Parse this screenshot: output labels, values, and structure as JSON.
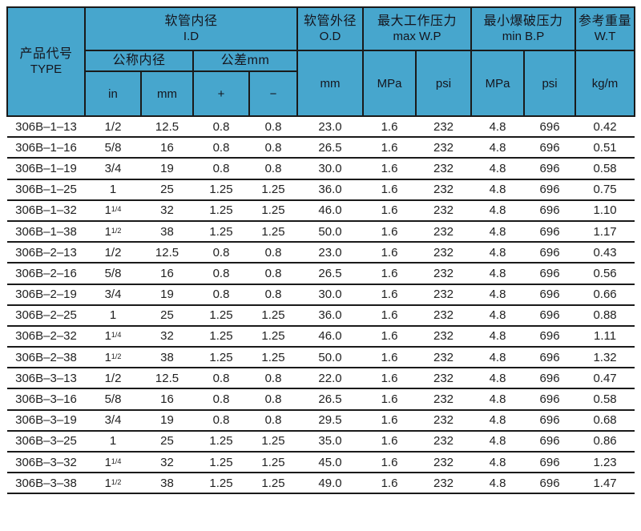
{
  "colors": {
    "header_bg": "#47a6cd",
    "border": "#1a1a1a",
    "text": "#222222"
  },
  "table": {
    "header": {
      "product_code_zh": "产品代号",
      "product_code_en": "TYPE",
      "inner_diameter_zh": "软管内径",
      "inner_diameter_en": "I.D",
      "nominal_id_zh": "公称内径",
      "tolerance_zh": "公差mm",
      "outer_diameter_zh": "软管外径",
      "outer_diameter_en": "O.D",
      "max_working_pressure_zh": "最大工作压力",
      "max_working_pressure_en": "max W.P",
      "min_burst_pressure_zh": "最小爆破压力",
      "min_burst_pressure_en": "min B.P",
      "reference_weight_zh": "参考重量",
      "reference_weight_en": "W.T",
      "unit_in": "in",
      "unit_mm": "mm",
      "unit_plus": "+",
      "unit_minus": "−",
      "unit_od_mm": "mm",
      "unit_wp_mpa": "MPa",
      "unit_wp_psi": "psi",
      "unit_bp_mpa": "MPa",
      "unit_bp_psi": "psi",
      "unit_kgm": "kg/m"
    },
    "rows": [
      {
        "type": "306B–1–13",
        "in_base": "1/2",
        "in_frac": "",
        "id_mm": "12.5",
        "tol_plus": "0.8",
        "tol_minus": "0.8",
        "od": "23.0",
        "wp_mpa": "1.6",
        "wp_psi": "232",
        "bp_mpa": "4.8",
        "bp_psi": "696",
        "wt": "0.42"
      },
      {
        "type": "306B–1–16",
        "in_base": "5/8",
        "in_frac": "",
        "id_mm": "16",
        "tol_plus": "0.8",
        "tol_minus": "0.8",
        "od": "26.5",
        "wp_mpa": "1.6",
        "wp_psi": "232",
        "bp_mpa": "4.8",
        "bp_psi": "696",
        "wt": "0.51"
      },
      {
        "type": "306B–1–19",
        "in_base": "3/4",
        "in_frac": "",
        "id_mm": "19",
        "tol_plus": "0.8",
        "tol_minus": "0.8",
        "od": "30.0",
        "wp_mpa": "1.6",
        "wp_psi": "232",
        "bp_mpa": "4.8",
        "bp_psi": "696",
        "wt": "0.58"
      },
      {
        "type": "306B–1–25",
        "in_base": "1",
        "in_frac": "",
        "id_mm": "25",
        "tol_plus": "1.25",
        "tol_minus": "1.25",
        "od": "36.0",
        "wp_mpa": "1.6",
        "wp_psi": "232",
        "bp_mpa": "4.8",
        "bp_psi": "696",
        "wt": "0.75"
      },
      {
        "type": "306B–1–32",
        "in_base": "1",
        "in_frac": "1/4",
        "id_mm": "32",
        "tol_plus": "1.25",
        "tol_minus": "1.25",
        "od": "46.0",
        "wp_mpa": "1.6",
        "wp_psi": "232",
        "bp_mpa": "4.8",
        "bp_psi": "696",
        "wt": "1.10"
      },
      {
        "type": "306B–1–38",
        "in_base": "1",
        "in_frac": "1/2",
        "id_mm": "38",
        "tol_plus": "1.25",
        "tol_minus": "1.25",
        "od": "50.0",
        "wp_mpa": "1.6",
        "wp_psi": "232",
        "bp_mpa": "4.8",
        "bp_psi": "696",
        "wt": "1.17"
      },
      {
        "type": "306B–2–13",
        "in_base": "1/2",
        "in_frac": "",
        "id_mm": "12.5",
        "tol_plus": "0.8",
        "tol_minus": "0.8",
        "od": "23.0",
        "wp_mpa": "1.6",
        "wp_psi": "232",
        "bp_mpa": "4.8",
        "bp_psi": "696",
        "wt": "0.43"
      },
      {
        "type": "306B–2–16",
        "in_base": "5/8",
        "in_frac": "",
        "id_mm": "16",
        "tol_plus": "0.8",
        "tol_minus": "0.8",
        "od": "26.5",
        "wp_mpa": "1.6",
        "wp_psi": "232",
        "bp_mpa": "4.8",
        "bp_psi": "696",
        "wt": "0.56"
      },
      {
        "type": "306B–2–19",
        "in_base": "3/4",
        "in_frac": "",
        "id_mm": "19",
        "tol_plus": "0.8",
        "tol_minus": "0.8",
        "od": "30.0",
        "wp_mpa": "1.6",
        "wp_psi": "232",
        "bp_mpa": "4.8",
        "bp_psi": "696",
        "wt": "0.66"
      },
      {
        "type": "306B–2–25",
        "in_base": "1",
        "in_frac": "",
        "id_mm": "25",
        "tol_plus": "1.25",
        "tol_minus": "1.25",
        "od": "36.0",
        "wp_mpa": "1.6",
        "wp_psi": "232",
        "bp_mpa": "4.8",
        "bp_psi": "696",
        "wt": "0.88"
      },
      {
        "type": "306B–2–32",
        "in_base": "1",
        "in_frac": "1/4",
        "id_mm": "32",
        "tol_plus": "1.25",
        "tol_minus": "1.25",
        "od": "46.0",
        "wp_mpa": "1.6",
        "wp_psi": "232",
        "bp_mpa": "4.8",
        "bp_psi": "696",
        "wt": "1.11"
      },
      {
        "type": "306B–2–38",
        "in_base": "1",
        "in_frac": "1/2",
        "id_mm": "38",
        "tol_plus": "1.25",
        "tol_minus": "1.25",
        "od": "50.0",
        "wp_mpa": "1.6",
        "wp_psi": "232",
        "bp_mpa": "4.8",
        "bp_psi": "696",
        "wt": "1.32"
      },
      {
        "type": "306B–3–13",
        "in_base": "1/2",
        "in_frac": "",
        "id_mm": "12.5",
        "tol_plus": "0.8",
        "tol_minus": "0.8",
        "od": "22.0",
        "wp_mpa": "1.6",
        "wp_psi": "232",
        "bp_mpa": "4.8",
        "bp_psi": "696",
        "wt": "0.47"
      },
      {
        "type": "306B–3–16",
        "in_base": "5/8",
        "in_frac": "",
        "id_mm": "16",
        "tol_plus": "0.8",
        "tol_minus": "0.8",
        "od": "26.5",
        "wp_mpa": "1.6",
        "wp_psi": "232",
        "bp_mpa": "4.8",
        "bp_psi": "696",
        "wt": "0.58"
      },
      {
        "type": "306B–3–19",
        "in_base": "3/4",
        "in_frac": "",
        "id_mm": "19",
        "tol_plus": "0.8",
        "tol_minus": "0.8",
        "od": "29.5",
        "wp_mpa": "1.6",
        "wp_psi": "232",
        "bp_mpa": "4.8",
        "bp_psi": "696",
        "wt": "0.68"
      },
      {
        "type": "306B–3–25",
        "in_base": "1",
        "in_frac": "",
        "id_mm": "25",
        "tol_plus": "1.25",
        "tol_minus": "1.25",
        "od": "35.0",
        "wp_mpa": "1.6",
        "wp_psi": "232",
        "bp_mpa": "4.8",
        "bp_psi": "696",
        "wt": "0.86"
      },
      {
        "type": "306B–3–32",
        "in_base": "1",
        "in_frac": "1/4",
        "id_mm": "32",
        "tol_plus": "1.25",
        "tol_minus": "1.25",
        "od": "45.0",
        "wp_mpa": "1.6",
        "wp_psi": "232",
        "bp_mpa": "4.8",
        "bp_psi": "696",
        "wt": "1.23"
      },
      {
        "type": "306B–3–38",
        "in_base": "1",
        "in_frac": "1/2",
        "id_mm": "38",
        "tol_plus": "1.25",
        "tol_minus": "1.25",
        "od": "49.0",
        "wp_mpa": "1.6",
        "wp_psi": "232",
        "bp_mpa": "4.8",
        "bp_psi": "696",
        "wt": "1.47"
      }
    ]
  }
}
